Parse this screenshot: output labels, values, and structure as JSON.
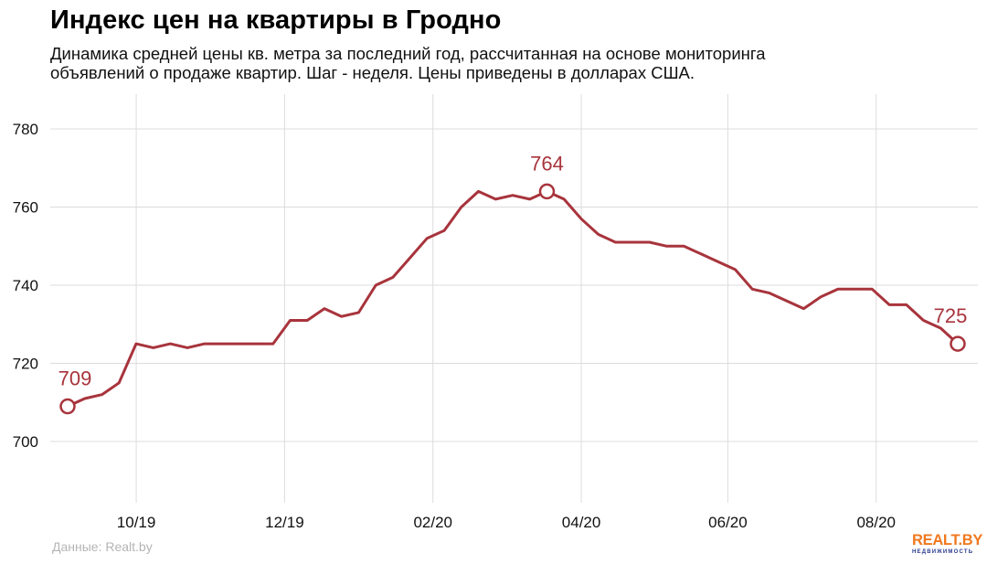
{
  "header": {
    "title": "Индекс цен на квартиры в Гродно",
    "subtitle_line1": "Динамика средней цены кв. метра за последний год, рассчитанная на основе мониторинга",
    "subtitle_line2": "объявлений о продаже квартир. Шаг - неделя. Цены приведены в долларах США."
  },
  "footer": {
    "source": "Данные: Realt.by",
    "logo_text": "REALT.BY",
    "logo_subtext": "НЕДВИЖИМОСТЬ"
  },
  "colors": {
    "line": "#a8343c",
    "grid": "#dcdcdc",
    "logo_orange": "#f0781e",
    "logo_blue": "#2a3a8c"
  },
  "chart_data": {
    "type": "line",
    "title": "",
    "xlabel": "",
    "ylabel": "",
    "ylim": [
      685,
      785
    ],
    "y_ticks": [
      700,
      720,
      740,
      760,
      780
    ],
    "x_ticks": [
      "10/19",
      "12/19",
      "02/20",
      "04/20",
      "06/20",
      "08/20"
    ],
    "x_week_range": [
      0,
      48
    ],
    "x_tick_weeks": [
      3.7,
      11.7,
      19.7,
      27.7,
      35.6,
      43.6
    ],
    "grid": true,
    "legend": "none",
    "series": [
      {
        "values": [
          709,
          711,
          712,
          715,
          725,
          724,
          725,
          724,
          725,
          725,
          725,
          725,
          725,
          731,
          731,
          734,
          732,
          733,
          740,
          742,
          747,
          752,
          754,
          760,
          764,
          762,
          763,
          762,
          764,
          762,
          757,
          753,
          751,
          751,
          751,
          750,
          750,
          748,
          746,
          744,
          739,
          738,
          736,
          734,
          737,
          739,
          739,
          739,
          735,
          735,
          731,
          729,
          725
        ]
      }
    ],
    "annotations": [
      {
        "index": 0,
        "label": "709"
      },
      {
        "index": 28,
        "label": "764"
      },
      {
        "index": 52,
        "label": "725"
      }
    ]
  }
}
